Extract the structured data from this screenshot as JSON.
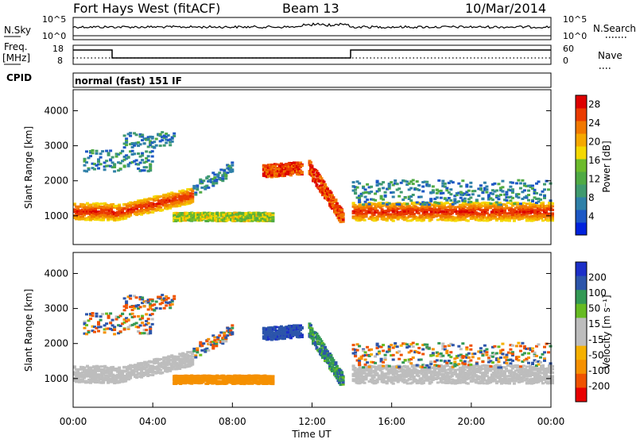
{
  "header": {
    "station": "Fort Hays West (fitACF)",
    "beam": "Beam 13",
    "date": "10/Mar/2014"
  },
  "panels": {
    "nsky": {
      "left_label": "N.Sky",
      "left_ticks": [
        "10^5",
        "10^0"
      ],
      "right_label": "N.Search",
      "right_ticks": [
        "10^5",
        "10^0"
      ]
    },
    "freq": {
      "left_label_1": "Freq.",
      "left_label_2": "[MHz]",
      "left_ticks": [
        "18",
        "8"
      ],
      "right_label": "Nave",
      "right_ticks": [
        "60",
        "0"
      ]
    },
    "cpid": {
      "label": "CPID",
      "mode": "normal (fast) 151 IF"
    }
  },
  "colors": {
    "power": [
      "#0022dd",
      "#1d58c5",
      "#2f80a8",
      "#3f9a6e",
      "#4faa44",
      "#6cbb2c",
      "#f4d800",
      "#f5a800",
      "#f17800",
      "#ea3b00",
      "#dd0000"
    ],
    "velocity": [
      "#e80000",
      "#ef5200",
      "#f59000",
      "#f5b000",
      "#bdbdbd",
      "#bdbdbd",
      "#66bb22",
      "#339955",
      "#2c55aa",
      "#1c2fc8"
    ]
  },
  "chart_data": [
    {
      "type": "heatmap",
      "name": "power",
      "ylabel": "Slant Range [km]",
      "ylim": [
        180,
        4600
      ],
      "yticks": [
        "1000",
        "2000",
        "3000",
        "4000"
      ],
      "xlim": [
        0,
        24
      ],
      "colorbar_label": "Power [dB]",
      "colorbar_ticks": [
        "4",
        "8",
        "12",
        "16",
        "20",
        "24",
        "28"
      ],
      "colorbar_range": [
        0,
        30
      ]
    },
    {
      "type": "heatmap",
      "name": "velocity",
      "ylabel": "Slant Range [km]",
      "ylim": [
        180,
        4600
      ],
      "yticks": [
        "1000",
        "2000",
        "3000",
        "4000"
      ],
      "xlim": [
        0,
        24
      ],
      "xticks": [
        "00:00",
        "04:00",
        "08:00",
        "12:00",
        "16:00",
        "20:00",
        "00:00"
      ],
      "xlabel": "Time UT",
      "colorbar_label": "Velocity [m s⁻¹]",
      "colorbar_ticks": [
        "200",
        "100",
        "50",
        "15",
        "-15",
        "-50",
        "-100",
        "-200"
      ]
    }
  ]
}
